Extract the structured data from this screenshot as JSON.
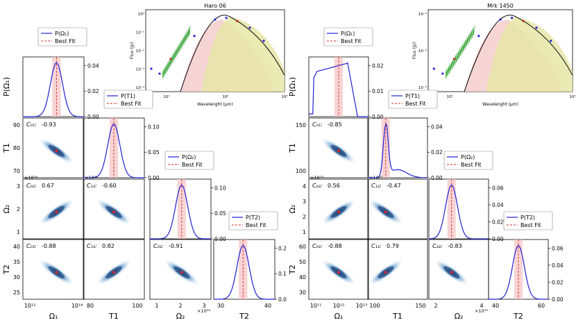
{
  "chart_data": [
    {
      "type": "corner",
      "object": "Haro 06",
      "params": [
        "Ω₁",
        "T1",
        "Ω₂",
        "T2"
      ],
      "axis_labels": {
        "x": [
          "Ω₁",
          "T1",
          "Ω₂",
          "T2"
        ],
        "y": [
          "P(Ω₁)",
          "T1",
          "Ω₂",
          "T2"
        ]
      },
      "correlations": [
        {
          "label": "C₀₁:",
          "value": "-0.93"
        },
        {
          "label": "C₀₂:",
          "value": "0.67"
        },
        {
          "label": "C₁₂:",
          "value": "-0.60"
        },
        {
          "label": "C₀₃:",
          "value": "-0.88"
        },
        {
          "label": "C₁₃:",
          "value": "0.82"
        },
        {
          "label": "C₂₃:",
          "value": "-0.91"
        }
      ],
      "legends": [
        {
          "entries": [
            "P(Ω₁)",
            "Best Fit"
          ]
        },
        {
          "entries": [
            "P(T1)",
            "Best Fit"
          ]
        },
        {
          "entries": [
            "P(Ω₂)",
            "Best Fit"
          ]
        },
        {
          "entries": [
            "P(T2)",
            "Best Fit"
          ]
        }
      ],
      "diag_ticks": [
        [
          "0.00",
          "0.02",
          "0.04"
        ],
        [
          "0.00",
          "0.05",
          "0.10"
        ],
        [
          "0.00",
          "0.05",
          "0.10"
        ],
        [
          "0.0",
          "0.1",
          "0.2"
        ]
      ],
      "y_ticks": {
        "T1": [
          "70",
          "80",
          "90"
        ],
        "Ω₂": [
          "1",
          "2",
          "3"
        ],
        "T2": [
          "25",
          "30",
          "35",
          "40"
        ]
      },
      "x_ticks": {
        "Ω₁": [
          "10¹²",
          "10¹⁴"
        ],
        "T1": [
          "80",
          "100"
        ],
        "Ω₂": [
          "1",
          "2",
          "3"
        ],
        "T2": [
          "30",
          "40"
        ]
      },
      "offsets": [
        "×10¹⁴",
        "×10¹⁴",
        "×10¹⁴"
      ],
      "sed": {
        "title": "Haro 06",
        "ylabel": "Flux (Jy)",
        "xlabel": "Wavelenght (μm)",
        "x_ticks": [
          "10¹",
          "10²",
          "10³"
        ],
        "y_ticks": [
          "10⁰",
          "10⁻¹",
          "10⁻²",
          "10⁻³",
          "10⁻⁴"
        ]
      }
    },
    {
      "type": "corner",
      "object": "Mrk 1450",
      "params": [
        "Ω₁",
        "T1",
        "Ω₂",
        "T2"
      ],
      "axis_labels": {
        "x": [
          "Ω₁",
          "T1",
          "Ω₂",
          "T2"
        ],
        "y": [
          "P(Ω₁)",
          "T1",
          "Ω₂",
          "T2"
        ]
      },
      "correlations": [
        {
          "label": "C₀₁:",
          "value": "-0.85"
        },
        {
          "label": "C₀₂:",
          "value": "0.56"
        },
        {
          "label": "C₁₂:",
          "value": "-0.47"
        },
        {
          "label": "C₀₃:",
          "value": "-0.88"
        },
        {
          "label": "C₁₃:",
          "value": "0.79"
        },
        {
          "label": "C₂₃:",
          "value": "-0.83"
        }
      ],
      "legends": [
        {
          "entries": [
            "P(Ω₁)",
            "Best Fit"
          ]
        },
        {
          "entries": [
            "P(T1)",
            "Best Fit"
          ]
        },
        {
          "entries": [
            "P(Ω₂)",
            "Best Fit"
          ]
        },
        {
          "entries": [
            "P(T2)",
            "Best Fit"
          ]
        }
      ],
      "diag_ticks": [
        [
          "0.00",
          "0.01",
          "0.02"
        ],
        [
          "0.00",
          "0.02",
          "0.04"
        ],
        [
          "0.00",
          "0.02",
          "0.04",
          "0.06"
        ],
        [
          "0.00",
          "0.02",
          "0.04",
          "0.06"
        ]
      ],
      "y_ticks": {
        "T1": [
          "100",
          "150"
        ],
        "Ω₂": [
          "1",
          "2",
          "3",
          "4"
        ],
        "T2": [
          "30",
          "40",
          "50",
          "60"
        ]
      },
      "x_ticks": {
        "Ω₁": [
          "10¹¹",
          "10¹²",
          "10¹³"
        ],
        "T1": [
          "100",
          "150"
        ],
        "Ω₂": [
          "2",
          "4"
        ],
        "T2": [
          "40",
          "60"
        ]
      },
      "offsets": [
        "×10¹³",
        "×10¹³",
        "×10¹³"
      ],
      "sed": {
        "title": "Mrk 1450",
        "ylabel": "Flux (Jy)",
        "xlabel": "Wavelenght (μm)",
        "x_ticks": [
          "10¹",
          "10²"
        ],
        "y_ticks": [
          "10⁻¹",
          "10⁻²",
          "10⁻³"
        ]
      }
    }
  ],
  "colors": {
    "posterior_line": "#1f1fd6",
    "best_fit": "#d62728",
    "shade": "#f5c6c6",
    "density": "#08306b",
    "sed_total": "#000000",
    "sed_warm": "#f4cccc",
    "sed_cold": "#e6e6a8",
    "spectrum": "#2ca02c",
    "photometry": "#1f1fd6"
  }
}
